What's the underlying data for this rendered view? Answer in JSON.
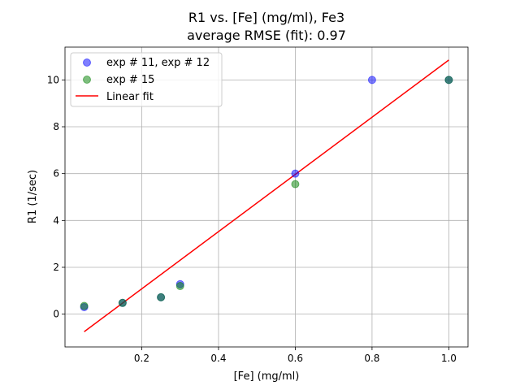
{
  "chart_data": {
    "type": "scatter",
    "title_line1": "R1 vs. [Fe] (mg/ml), Fe3",
    "title_line2": "average RMSE (fit): 0.97",
    "xlabel": "[Fe] (mg/ml)",
    "ylabel": "R1 (1/sec)",
    "xlim": [
      0.0,
      1.05
    ],
    "ylim": [
      -1.4,
      11.4
    ],
    "grid": true,
    "legend_position": "top-left",
    "x_ticks": [
      0.2,
      0.4,
      0.6,
      0.8,
      1.0
    ],
    "x_tick_labels": [
      "0.2",
      "0.4",
      "0.6",
      "0.8",
      "1.0"
    ],
    "y_ticks": [
      0,
      2,
      4,
      6,
      8,
      10
    ],
    "y_tick_labels": [
      "0",
      "2",
      "4",
      "6",
      "8",
      "10"
    ],
    "series": [
      {
        "name": "exp # 11, exp # 12",
        "color": "#0000ff",
        "points": [
          {
            "x": 0.05,
            "y": 0.3
          },
          {
            "x": 0.15,
            "y": 0.48
          },
          {
            "x": 0.25,
            "y": 0.72
          },
          {
            "x": 0.3,
            "y": 1.28
          },
          {
            "x": 0.6,
            "y": 6.0
          },
          {
            "x": 0.8,
            "y": 10.0
          },
          {
            "x": 1.0,
            "y": 10.0
          }
        ]
      },
      {
        "name": "exp # 15",
        "color": "#008000",
        "points": [
          {
            "x": 0.05,
            "y": 0.35
          },
          {
            "x": 0.15,
            "y": 0.48
          },
          {
            "x": 0.25,
            "y": 0.72
          },
          {
            "x": 0.3,
            "y": 1.2
          },
          {
            "x": 0.6,
            "y": 5.55
          },
          {
            "x": 1.0,
            "y": 10.0
          }
        ]
      }
    ],
    "fit": {
      "name": "Linear fit",
      "color": "#ff0000",
      "x": [
        0.05,
        1.0
      ],
      "y": [
        -0.75,
        10.85
      ]
    }
  }
}
